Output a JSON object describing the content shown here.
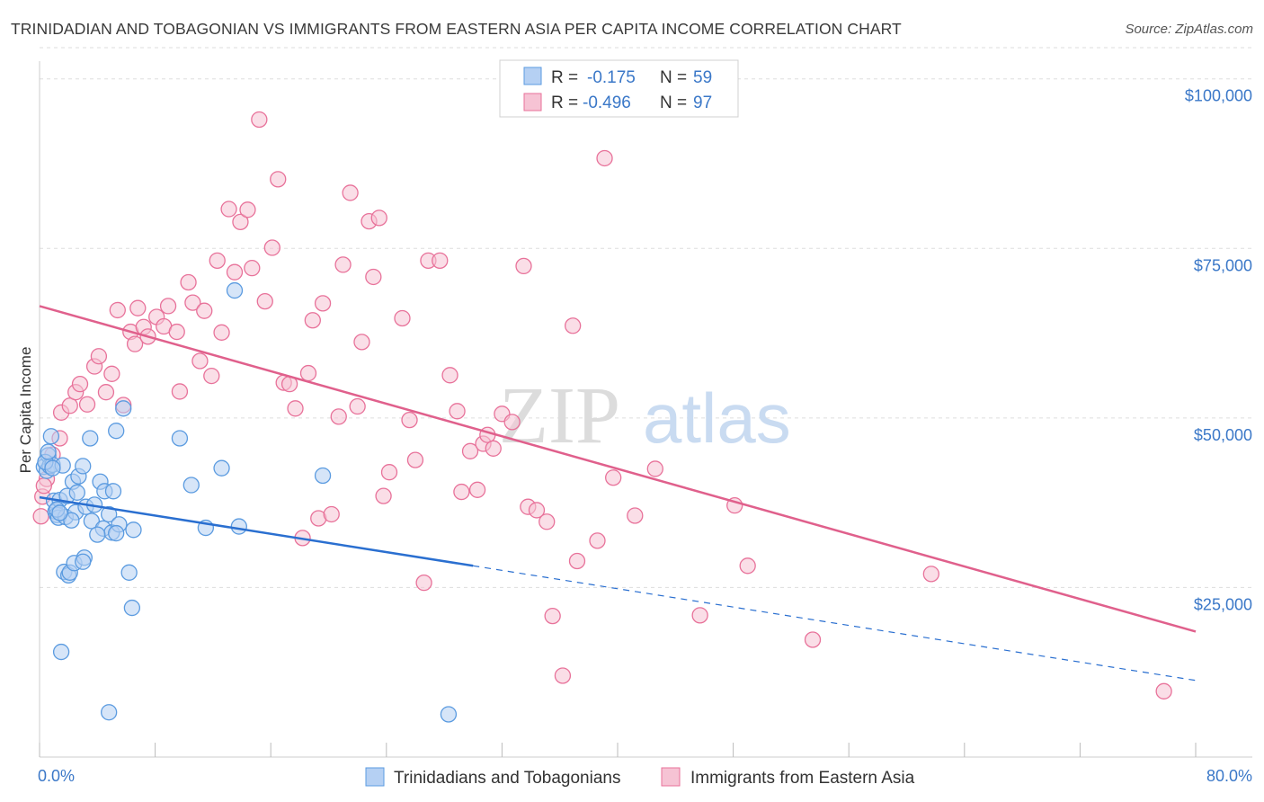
{
  "title": "TRINIDADIAN AND TOBAGONIAN VS IMMIGRANTS FROM EASTERN ASIA PER CAPITA INCOME CORRELATION CHART",
  "source": "Source: ZipAtlas.com",
  "watermark": {
    "part1": "ZIP",
    "part2": "atlas"
  },
  "colors": {
    "blue": "#5b9be0",
    "blue_fill": "#b5d0f3",
    "blue_line": "#2a6fd0",
    "pink": "#e8729a",
    "pink_fill": "#f6c3d4",
    "pink_line": "#e0608c",
    "axis_text": "#3b78c8",
    "grid": "#dddddd"
  },
  "legend": {
    "rows": [
      {
        "r_label": "R =",
        "r_value": "-0.175",
        "n_label": "N =",
        "n_value": "59",
        "series": "blue"
      },
      {
        "r_label": "R =",
        "r_value": "-0.496",
        "n_label": "N =",
        "n_value": "97",
        "series": "pink"
      }
    ],
    "placement": "top-center"
  },
  "bottom_legend": {
    "items": [
      {
        "label": "Trinidadians and Tobagonians",
        "series": "blue"
      },
      {
        "label": "Immigrants from Eastern Asia",
        "series": "pink"
      }
    ]
  },
  "chart_data": {
    "type": "scatter",
    "ylabel": "Per Capita Income",
    "xlim": [
      0,
      80
    ],
    "ylim": [
      0,
      105000
    ],
    "x_tick_labels": {
      "left": "0.0%",
      "right": "80.0%"
    },
    "y_ticks": [
      {
        "value": 25000,
        "label": "$25,000"
      },
      {
        "value": 50000,
        "label": "$50,000"
      },
      {
        "value": 75000,
        "label": "$75,000"
      },
      {
        "value": 100000,
        "label": "$100,000"
      }
    ],
    "grid": true,
    "series": [
      {
        "name": "Trinidadians and Tobagonians",
        "color": "blue",
        "trend": {
          "x0": 0,
          "y0": 38300,
          "x1": 30,
          "y1": 28200,
          "dash_to_x": 80,
          "dash_to_y": 11300
        },
        "points": [
          [
            0.3,
            42800
          ],
          [
            0.5,
            42200
          ],
          [
            0.6,
            44500
          ],
          [
            0.7,
            42900
          ],
          [
            0.8,
            47300
          ],
          [
            0.9,
            43100
          ],
          [
            1.0,
            37800
          ],
          [
            1.1,
            36200
          ],
          [
            1.2,
            35700
          ],
          [
            1.3,
            35300
          ],
          [
            1.4,
            37900
          ],
          [
            1.6,
            43000
          ],
          [
            1.7,
            27300
          ],
          [
            1.8,
            35400
          ],
          [
            1.9,
            38500
          ],
          [
            2.0,
            26800
          ],
          [
            2.1,
            27200
          ],
          [
            2.3,
            40600
          ],
          [
            2.4,
            28600
          ],
          [
            2.5,
            36100
          ],
          [
            2.6,
            39000
          ],
          [
            2.7,
            41400
          ],
          [
            3.0,
            42900
          ],
          [
            3.1,
            29400
          ],
          [
            3.2,
            36900
          ],
          [
            3.5,
            47000
          ],
          [
            3.6,
            34800
          ],
          [
            3.8,
            37200
          ],
          [
            4.2,
            40600
          ],
          [
            4.4,
            33700
          ],
          [
            4.5,
            39200
          ],
          [
            4.8,
            35800
          ],
          [
            5.0,
            33100
          ],
          [
            5.1,
            39200
          ],
          [
            5.3,
            48100
          ],
          [
            5.5,
            34300
          ],
          [
            5.8,
            51400
          ],
          [
            6.2,
            27200
          ],
          [
            6.4,
            22000
          ],
          [
            6.5,
            33500
          ],
          [
            9.7,
            47000
          ],
          [
            10.5,
            40100
          ],
          [
            11.5,
            33800
          ],
          [
            12.6,
            42600
          ],
          [
            13.5,
            68800
          ],
          [
            13.8,
            34000
          ],
          [
            19.6,
            41500
          ],
          [
            1.5,
            15500
          ],
          [
            4.8,
            6600
          ],
          [
            28.3,
            6300
          ],
          [
            0.4,
            43500
          ],
          [
            0.9,
            42600
          ],
          [
            1.2,
            36500
          ],
          [
            2.2,
            34900
          ],
          [
            3.0,
            28800
          ],
          [
            4.0,
            32800
          ],
          [
            5.3,
            33000
          ],
          [
            0.6,
            45000
          ],
          [
            1.4,
            36000
          ]
        ]
      },
      {
        "name": "Immigrants from Eastern Asia",
        "color": "pink",
        "trend": {
          "x0": 0,
          "y0": 66500,
          "x1": 80,
          "y1": 18500
        },
        "points": [
          [
            0.1,
            35500
          ],
          [
            0.2,
            38400
          ],
          [
            0.5,
            41000
          ],
          [
            0.9,
            44600
          ],
          [
            1.4,
            47000
          ],
          [
            1.5,
            50800
          ],
          [
            2.1,
            51800
          ],
          [
            2.5,
            53800
          ],
          [
            2.8,
            55000
          ],
          [
            3.3,
            52000
          ],
          [
            3.8,
            57600
          ],
          [
            4.1,
            59100
          ],
          [
            4.6,
            53800
          ],
          [
            5.0,
            56500
          ],
          [
            5.4,
            65900
          ],
          [
            5.8,
            51900
          ],
          [
            6.3,
            62700
          ],
          [
            6.6,
            60900
          ],
          [
            6.8,
            66200
          ],
          [
            7.2,
            63400
          ],
          [
            7.5,
            62000
          ],
          [
            8.1,
            64900
          ],
          [
            8.6,
            63500
          ],
          [
            8.9,
            66500
          ],
          [
            9.5,
            62700
          ],
          [
            9.7,
            53900
          ],
          [
            10.3,
            70000
          ],
          [
            10.6,
            67000
          ],
          [
            11.1,
            58400
          ],
          [
            11.4,
            65800
          ],
          [
            11.9,
            56200
          ],
          [
            12.3,
            73200
          ],
          [
            12.6,
            62600
          ],
          [
            13.1,
            80800
          ],
          [
            13.5,
            71500
          ],
          [
            13.9,
            78900
          ],
          [
            14.4,
            80700
          ],
          [
            14.7,
            72100
          ],
          [
            15.2,
            94000
          ],
          [
            15.6,
            67200
          ],
          [
            16.1,
            75100
          ],
          [
            16.5,
            85200
          ],
          [
            16.9,
            55200
          ],
          [
            17.3,
            55000
          ],
          [
            17.7,
            51400
          ],
          [
            18.2,
            32300
          ],
          [
            18.6,
            56600
          ],
          [
            18.9,
            64400
          ],
          [
            19.3,
            35200
          ],
          [
            19.6,
            66900
          ],
          [
            20.2,
            35800
          ],
          [
            20.7,
            50200
          ],
          [
            21.0,
            72600
          ],
          [
            21.5,
            83200
          ],
          [
            22.0,
            51700
          ],
          [
            22.3,
            61200
          ],
          [
            22.8,
            79000
          ],
          [
            23.1,
            70800
          ],
          [
            23.5,
            79500
          ],
          [
            23.8,
            38500
          ],
          [
            24.2,
            42000
          ],
          [
            25.1,
            64700
          ],
          [
            25.6,
            49700
          ],
          [
            26.0,
            43800
          ],
          [
            26.6,
            25700
          ],
          [
            26.9,
            73200
          ],
          [
            27.7,
            73200
          ],
          [
            28.4,
            56300
          ],
          [
            28.9,
            51000
          ],
          [
            29.2,
            39100
          ],
          [
            29.8,
            45100
          ],
          [
            30.3,
            39400
          ],
          [
            30.7,
            46200
          ],
          [
            31.0,
            47500
          ],
          [
            31.4,
            45500
          ],
          [
            32.0,
            50600
          ],
          [
            32.7,
            49400
          ],
          [
            33.5,
            72400
          ],
          [
            33.8,
            36900
          ],
          [
            34.4,
            36400
          ],
          [
            35.1,
            34700
          ],
          [
            35.5,
            20800
          ],
          [
            36.2,
            12000
          ],
          [
            36.9,
            63600
          ],
          [
            37.2,
            28900
          ],
          [
            38.6,
            31900
          ],
          [
            39.1,
            88300
          ],
          [
            39.7,
            41200
          ],
          [
            41.2,
            35600
          ],
          [
            42.6,
            42500
          ],
          [
            45.7,
            20900
          ],
          [
            48.1,
            37100
          ],
          [
            49.0,
            28200
          ],
          [
            53.5,
            17300
          ],
          [
            61.7,
            27000
          ],
          [
            77.8,
            9700
          ],
          [
            0.3,
            40000
          ]
        ]
      }
    ]
  }
}
